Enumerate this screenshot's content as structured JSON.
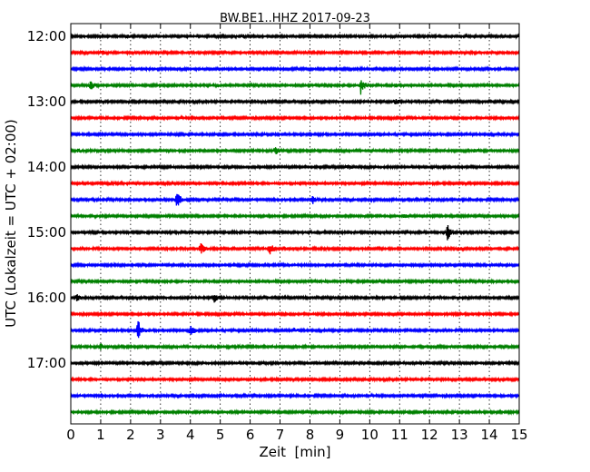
{
  "chart_data": {
    "type": "line",
    "title": "BW.BE1..HHZ 2017-09-23",
    "xlabel": "Zeit  [min]",
    "ylabel": "UTC (Lokalzeit = UTC + 02:00)",
    "xlim": [
      0,
      15
    ],
    "x_ticks": [
      "0",
      "1",
      "2",
      "3",
      "4",
      "5",
      "6",
      "7",
      "8",
      "9",
      "10",
      "11",
      "12",
      "13",
      "14",
      "15"
    ],
    "y_ticks": [
      "12:00",
      "13:00",
      "14:00",
      "15:00",
      "16:00",
      "17:00"
    ],
    "grid": true,
    "trace_colors": [
      "#000000",
      "#ff0000",
      "#0000ff",
      "#008000"
    ],
    "traces": [
      {
        "start": "12:00",
        "events": [
          {
            "t": 1.9,
            "amp": 0.12
          },
          {
            "t": 5.8,
            "amp": 0.14
          }
        ]
      },
      {
        "start": "12:15",
        "events": [
          {
            "t": 1.05,
            "amp": 0.22
          }
        ]
      },
      {
        "start": "12:30",
        "events": []
      },
      {
        "start": "12:45",
        "events": [
          {
            "t": 0.65,
            "amp": 0.5
          },
          {
            "t": 4.9,
            "amp": 0.18
          },
          {
            "t": 9.7,
            "amp": 0.9
          },
          {
            "t": 10.9,
            "amp": 0.15
          }
        ]
      },
      {
        "start": "13:00",
        "events": [
          {
            "t": 10.85,
            "amp": 0.3
          }
        ]
      },
      {
        "start": "13:15",
        "events": []
      },
      {
        "start": "13:30",
        "events": [
          {
            "t": 14.3,
            "amp": 0.08
          }
        ]
      },
      {
        "start": "13:45",
        "events": [
          {
            "t": 0.25,
            "amp": 0.2
          },
          {
            "t": 6.85,
            "amp": 0.45
          },
          {
            "t": 13.5,
            "amp": 0.12
          }
        ]
      },
      {
        "start": "14:00",
        "events": [
          {
            "t": 9.25,
            "amp": 0.25
          }
        ]
      },
      {
        "start": "14:15",
        "events": [
          {
            "t": 1.3,
            "amp": 0.08
          }
        ]
      },
      {
        "start": "14:30",
        "events": [
          {
            "t": 3.55,
            "amp": 0.8
          },
          {
            "t": 8.1,
            "amp": 0.4
          }
        ]
      },
      {
        "start": "14:45",
        "events": [
          {
            "t": 11.15,
            "amp": 0.15
          }
        ]
      },
      {
        "start": "15:00",
        "events": [
          {
            "t": 12.6,
            "amp": 0.9
          }
        ]
      },
      {
        "start": "15:15",
        "events": [
          {
            "t": 4.35,
            "amp": 0.55
          },
          {
            "t": 6.65,
            "amp": 0.55
          },
          {
            "t": 7.15,
            "amp": 0.12
          },
          {
            "t": 12.95,
            "amp": 0.2
          }
        ]
      },
      {
        "start": "15:30",
        "events": []
      },
      {
        "start": "15:45",
        "events": [
          {
            "t": 8.35,
            "amp": 0.14
          }
        ]
      },
      {
        "start": "16:00",
        "events": [
          {
            "t": 0.2,
            "amp": 0.3
          },
          {
            "t": 4.8,
            "amp": 0.45
          }
        ]
      },
      {
        "start": "16:15",
        "events": []
      },
      {
        "start": "16:30",
        "events": [
          {
            "t": 2.25,
            "amp": 1.0
          },
          {
            "t": 4.0,
            "amp": 0.55
          },
          {
            "t": 7.5,
            "amp": 0.18
          }
        ]
      },
      {
        "start": "16:45",
        "events": [
          {
            "t": 1.0,
            "amp": 0.3
          }
        ]
      },
      {
        "start": "17:00",
        "events": []
      },
      {
        "start": "17:15",
        "events": []
      },
      {
        "start": "17:30",
        "events": []
      },
      {
        "start": "17:45",
        "events": []
      }
    ]
  }
}
